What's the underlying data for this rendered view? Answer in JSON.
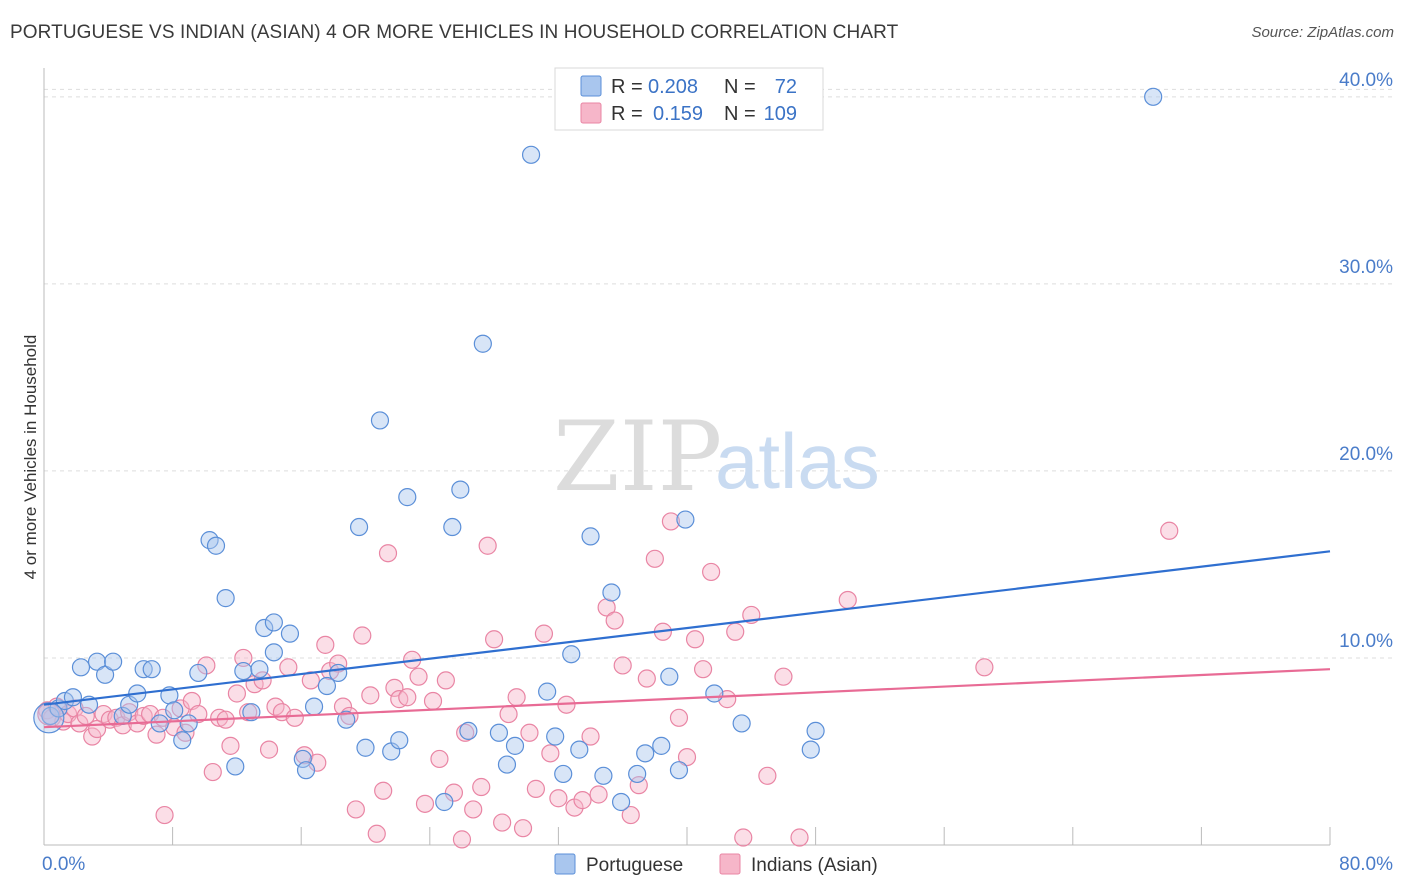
{
  "title": "PORTUGUESE VS INDIAN (ASIAN) 4 OR MORE VEHICLES IN HOUSEHOLD CORRELATION CHART",
  "source": "Source: ZipAtlas.com",
  "watermark": {
    "zip": "ZIP",
    "atlas": "atlas"
  },
  "colors": {
    "blue_fill": "#a9c6ee",
    "blue_stroke": "#5b8fd8",
    "blue_line": "#2f6fd0",
    "pink_fill": "#f6b6c9",
    "pink_stroke": "#e985a4",
    "pink_line": "#e86b95",
    "grid": "#dddddd",
    "axis": "#bbbbbb",
    "tick_text": "#4a7cc9"
  },
  "legend": {
    "rows": [
      {
        "r_label": "R =",
        "r_value": "0.208",
        "n_label": "N =",
        "n_value": "72",
        "color": "blue"
      },
      {
        "r_label": "R =",
        "r_value": "0.159",
        "n_label": "N =",
        "n_value": "109",
        "color": "pink"
      }
    ]
  },
  "bottom_legend": [
    "Portuguese",
    "Indians (Asian)"
  ],
  "chart_data": {
    "type": "scatter",
    "title": "PORTUGUESE VS INDIAN (ASIAN) 4 OR MORE VEHICLES IN HOUSEHOLD CORRELATION CHART",
    "xlabel": "",
    "ylabel": "4 or more Vehicles in Household",
    "xlim": [
      0,
      80
    ],
    "ylim": [
      0,
      40.9
    ],
    "x_tick_labels": [
      "0.0%",
      "80.0%"
    ],
    "y_ticks": [
      10,
      20,
      30,
      40
    ],
    "y_tick_labels": [
      "10.0%",
      "20.0%",
      "30.0%",
      "40.0%"
    ],
    "grid": "horizontal dashed",
    "legend_position": "top-center",
    "series": [
      {
        "name": "Portuguese",
        "color": "blue",
        "trend": {
          "x0": 0,
          "y0": 7.5,
          "x1": 80,
          "y1": 15.7
        },
        "points": [
          [
            0.4,
            6.9
          ],
          [
            0.9,
            7.3
          ],
          [
            1.3,
            7.7
          ],
          [
            1.8,
            7.9
          ],
          [
            2.3,
            9.5
          ],
          [
            2.8,
            7.5
          ],
          [
            3.3,
            9.8
          ],
          [
            3.8,
            9.1
          ],
          [
            4.3,
            9.8
          ],
          [
            4.9,
            6.9
          ],
          [
            5.3,
            7.5
          ],
          [
            5.8,
            8.1
          ],
          [
            6.2,
            9.4
          ],
          [
            6.7,
            9.4
          ],
          [
            7.2,
            6.5
          ],
          [
            7.8,
            8.0
          ],
          [
            8.1,
            7.2
          ],
          [
            8.6,
            5.6
          ],
          [
            9.0,
            6.5
          ],
          [
            9.6,
            9.2
          ],
          [
            10.3,
            16.3
          ],
          [
            10.7,
            16.0
          ],
          [
            11.3,
            13.2
          ],
          [
            11.9,
            4.2
          ],
          [
            12.4,
            9.3
          ],
          [
            12.9,
            7.1
          ],
          [
            13.4,
            9.4
          ],
          [
            13.7,
            11.6
          ],
          [
            14.3,
            10.3
          ],
          [
            14.3,
            11.9
          ],
          [
            15.3,
            11.3
          ],
          [
            16.1,
            4.6
          ],
          [
            16.3,
            4.0
          ],
          [
            16.8,
            7.4
          ],
          [
            17.6,
            8.5
          ],
          [
            18.3,
            9.2
          ],
          [
            18.8,
            6.7
          ],
          [
            19.6,
            17.0
          ],
          [
            20.0,
            5.2
          ],
          [
            20.9,
            22.7
          ],
          [
            21.6,
            5.0
          ],
          [
            22.1,
            5.6
          ],
          [
            22.6,
            18.6
          ],
          [
            24.9,
            2.3
          ],
          [
            25.4,
            17.0
          ],
          [
            25.9,
            19.0
          ],
          [
            26.4,
            6.1
          ],
          [
            27.3,
            26.8
          ],
          [
            28.3,
            6.0
          ],
          [
            28.8,
            4.3
          ],
          [
            29.3,
            5.3
          ],
          [
            30.3,
            36.9
          ],
          [
            31.3,
            8.2
          ],
          [
            31.8,
            5.8
          ],
          [
            32.3,
            3.8
          ],
          [
            32.8,
            10.2
          ],
          [
            33.3,
            5.1
          ],
          [
            34.0,
            16.5
          ],
          [
            34.8,
            3.7
          ],
          [
            35.3,
            13.5
          ],
          [
            35.9,
            2.3
          ],
          [
            36.9,
            3.8
          ],
          [
            37.4,
            4.9
          ],
          [
            38.4,
            5.3
          ],
          [
            38.9,
            9.0
          ],
          [
            39.5,
            4.0
          ],
          [
            39.9,
            17.4
          ],
          [
            41.7,
            8.1
          ],
          [
            43.4,
            6.5
          ],
          [
            47.7,
            5.1
          ],
          [
            48.0,
            6.1
          ],
          [
            69.0,
            40.0
          ]
        ]
      },
      {
        "name": "Indians (Asian)",
        "color": "pink",
        "trend": {
          "x0": 0,
          "y0": 6.3,
          "x1": 80,
          "y1": 9.4
        },
        "points": [
          [
            0.2,
            7.2
          ],
          [
            0.5,
            6.8
          ],
          [
            0.8,
            7.4
          ],
          [
            1.2,
            6.6
          ],
          [
            1.5,
            7.0
          ],
          [
            1.9,
            7.3
          ],
          [
            2.2,
            6.5
          ],
          [
            2.6,
            6.9
          ],
          [
            3.0,
            5.8
          ],
          [
            3.3,
            6.2
          ],
          [
            3.7,
            7.0
          ],
          [
            4.1,
            6.7
          ],
          [
            4.5,
            6.8
          ],
          [
            4.9,
            6.4
          ],
          [
            5.3,
            7.1
          ],
          [
            5.8,
            6.5
          ],
          [
            6.2,
            6.9
          ],
          [
            6.6,
            7.0
          ],
          [
            7.0,
            5.9
          ],
          [
            7.4,
            6.8
          ],
          [
            7.5,
            1.6
          ],
          [
            8.1,
            6.3
          ],
          [
            8.5,
            7.3
          ],
          [
            8.8,
            6.0
          ],
          [
            9.2,
            7.7
          ],
          [
            9.6,
            7.0
          ],
          [
            10.1,
            9.6
          ],
          [
            10.5,
            3.9
          ],
          [
            10.9,
            6.8
          ],
          [
            11.3,
            6.7
          ],
          [
            11.6,
            5.3
          ],
          [
            12.0,
            8.1
          ],
          [
            12.4,
            10.0
          ],
          [
            12.7,
            7.1
          ],
          [
            13.1,
            8.6
          ],
          [
            13.6,
            8.8
          ],
          [
            14.0,
            5.1
          ],
          [
            14.4,
            7.4
          ],
          [
            14.8,
            7.1
          ],
          [
            15.2,
            9.5
          ],
          [
            15.6,
            6.8
          ],
          [
            16.2,
            4.8
          ],
          [
            16.6,
            8.8
          ],
          [
            17.0,
            4.4
          ],
          [
            17.5,
            10.7
          ],
          [
            17.8,
            9.3
          ],
          [
            18.3,
            9.7
          ],
          [
            18.6,
            7.4
          ],
          [
            19.0,
            6.9
          ],
          [
            19.4,
            1.9
          ],
          [
            19.8,
            11.2
          ],
          [
            20.3,
            8.0
          ],
          [
            20.7,
            0.6
          ],
          [
            21.1,
            2.9
          ],
          [
            21.4,
            15.6
          ],
          [
            21.8,
            8.4
          ],
          [
            22.1,
            7.8
          ],
          [
            22.6,
            7.9
          ],
          [
            22.9,
            9.9
          ],
          [
            23.3,
            9.0
          ],
          [
            23.7,
            2.2
          ],
          [
            24.2,
            7.7
          ],
          [
            24.6,
            4.6
          ],
          [
            25.0,
            8.8
          ],
          [
            25.5,
            2.8
          ],
          [
            26.0,
            0.3
          ],
          [
            26.2,
            6.0
          ],
          [
            26.7,
            1.9
          ],
          [
            27.2,
            3.1
          ],
          [
            27.6,
            16.0
          ],
          [
            28.0,
            11.0
          ],
          [
            28.5,
            1.2
          ],
          [
            28.9,
            7.0
          ],
          [
            29.4,
            7.9
          ],
          [
            29.8,
            0.9
          ],
          [
            30.2,
            6.0
          ],
          [
            30.6,
            3.0
          ],
          [
            31.1,
            11.3
          ],
          [
            31.5,
            4.9
          ],
          [
            32.0,
            2.5
          ],
          [
            32.5,
            7.5
          ],
          [
            33.0,
            2.0
          ],
          [
            33.5,
            2.4
          ],
          [
            34.0,
            5.8
          ],
          [
            34.5,
            2.7
          ],
          [
            35.0,
            12.7
          ],
          [
            35.5,
            12.0
          ],
          [
            36.0,
            9.6
          ],
          [
            36.5,
            1.6
          ],
          [
            37.0,
            3.2
          ],
          [
            37.5,
            8.9
          ],
          [
            38.0,
            15.3
          ],
          [
            38.5,
            11.4
          ],
          [
            39.0,
            17.3
          ],
          [
            39.5,
            6.8
          ],
          [
            40.0,
            4.7
          ],
          [
            40.5,
            11.0
          ],
          [
            41.0,
            9.4
          ],
          [
            41.5,
            14.6
          ],
          [
            42.5,
            7.8
          ],
          [
            43.0,
            11.4
          ],
          [
            43.5,
            0.4
          ],
          [
            44.0,
            12.3
          ],
          [
            45.0,
            3.7
          ],
          [
            46.0,
            9.0
          ],
          [
            47.0,
            0.4
          ],
          [
            50.0,
            13.1
          ],
          [
            58.5,
            9.5
          ],
          [
            70.0,
            16.8
          ]
        ]
      }
    ]
  }
}
